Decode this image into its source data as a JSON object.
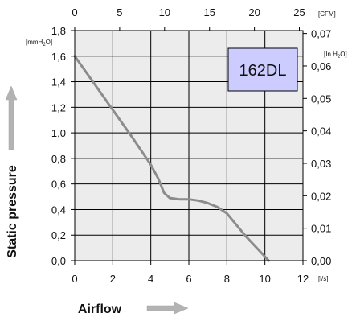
{
  "chart_data": {
    "type": "line",
    "title": "",
    "model_label": "162DL",
    "xlabel": "Airflow",
    "ylabel": "Static pressure",
    "x_unit": "[l/s]",
    "x_top_unit": "[CFM]",
    "y_left_unit": {
      "base": "[mmH",
      "sub": "2",
      "end": "O]"
    },
    "y_right_unit": {
      "base": "[In.H",
      "sub": "2",
      "end": "O]"
    },
    "xlim": [
      0,
      12
    ],
    "ylim": [
      0,
      1.8
    ],
    "x_ticks": [
      "0",
      "2",
      "4",
      "6",
      "8",
      "10",
      "12"
    ],
    "y_ticks": [
      "0,0",
      "0,2",
      "0,4",
      "0,6",
      "0,8",
      "1,0",
      "1,2",
      "1,4",
      "1,6",
      "1,8"
    ],
    "x_top_ticks": [
      "0",
      "5",
      "10",
      "15",
      "20",
      "25"
    ],
    "x_top_tick_values": [
      0,
      5,
      10,
      15,
      20,
      25
    ],
    "x_top_range": [
      0,
      25.4
    ],
    "y_right_ticks": [
      "0,00",
      "0,01",
      "0,02",
      "0,03",
      "0,04",
      "0,05",
      "0,06",
      "0,07"
    ],
    "y_right_tick_values": [
      0,
      0.01,
      0.02,
      0.03,
      0.04,
      0.05,
      0.06,
      0.07
    ],
    "y_right_range": [
      0,
      0.0709
    ],
    "grid": true,
    "series": [
      {
        "x": [
          0,
          1,
          2,
          3,
          4,
          4.4,
          4.7,
          5.0,
          5.5,
          6.0,
          6.5,
          7.0,
          7.5,
          8.0,
          9.0,
          10.2
        ],
        "y": [
          1.6,
          1.39,
          1.18,
          0.97,
          0.75,
          0.64,
          0.53,
          0.49,
          0.48,
          0.48,
          0.47,
          0.45,
          0.42,
          0.37,
          0.19,
          0.0
        ]
      }
    ],
    "colors": {
      "line": "#8c8c8c",
      "plot_bg": "#ececec",
      "model_box": "#ccccff",
      "arrow": "#b3b3b3"
    }
  }
}
